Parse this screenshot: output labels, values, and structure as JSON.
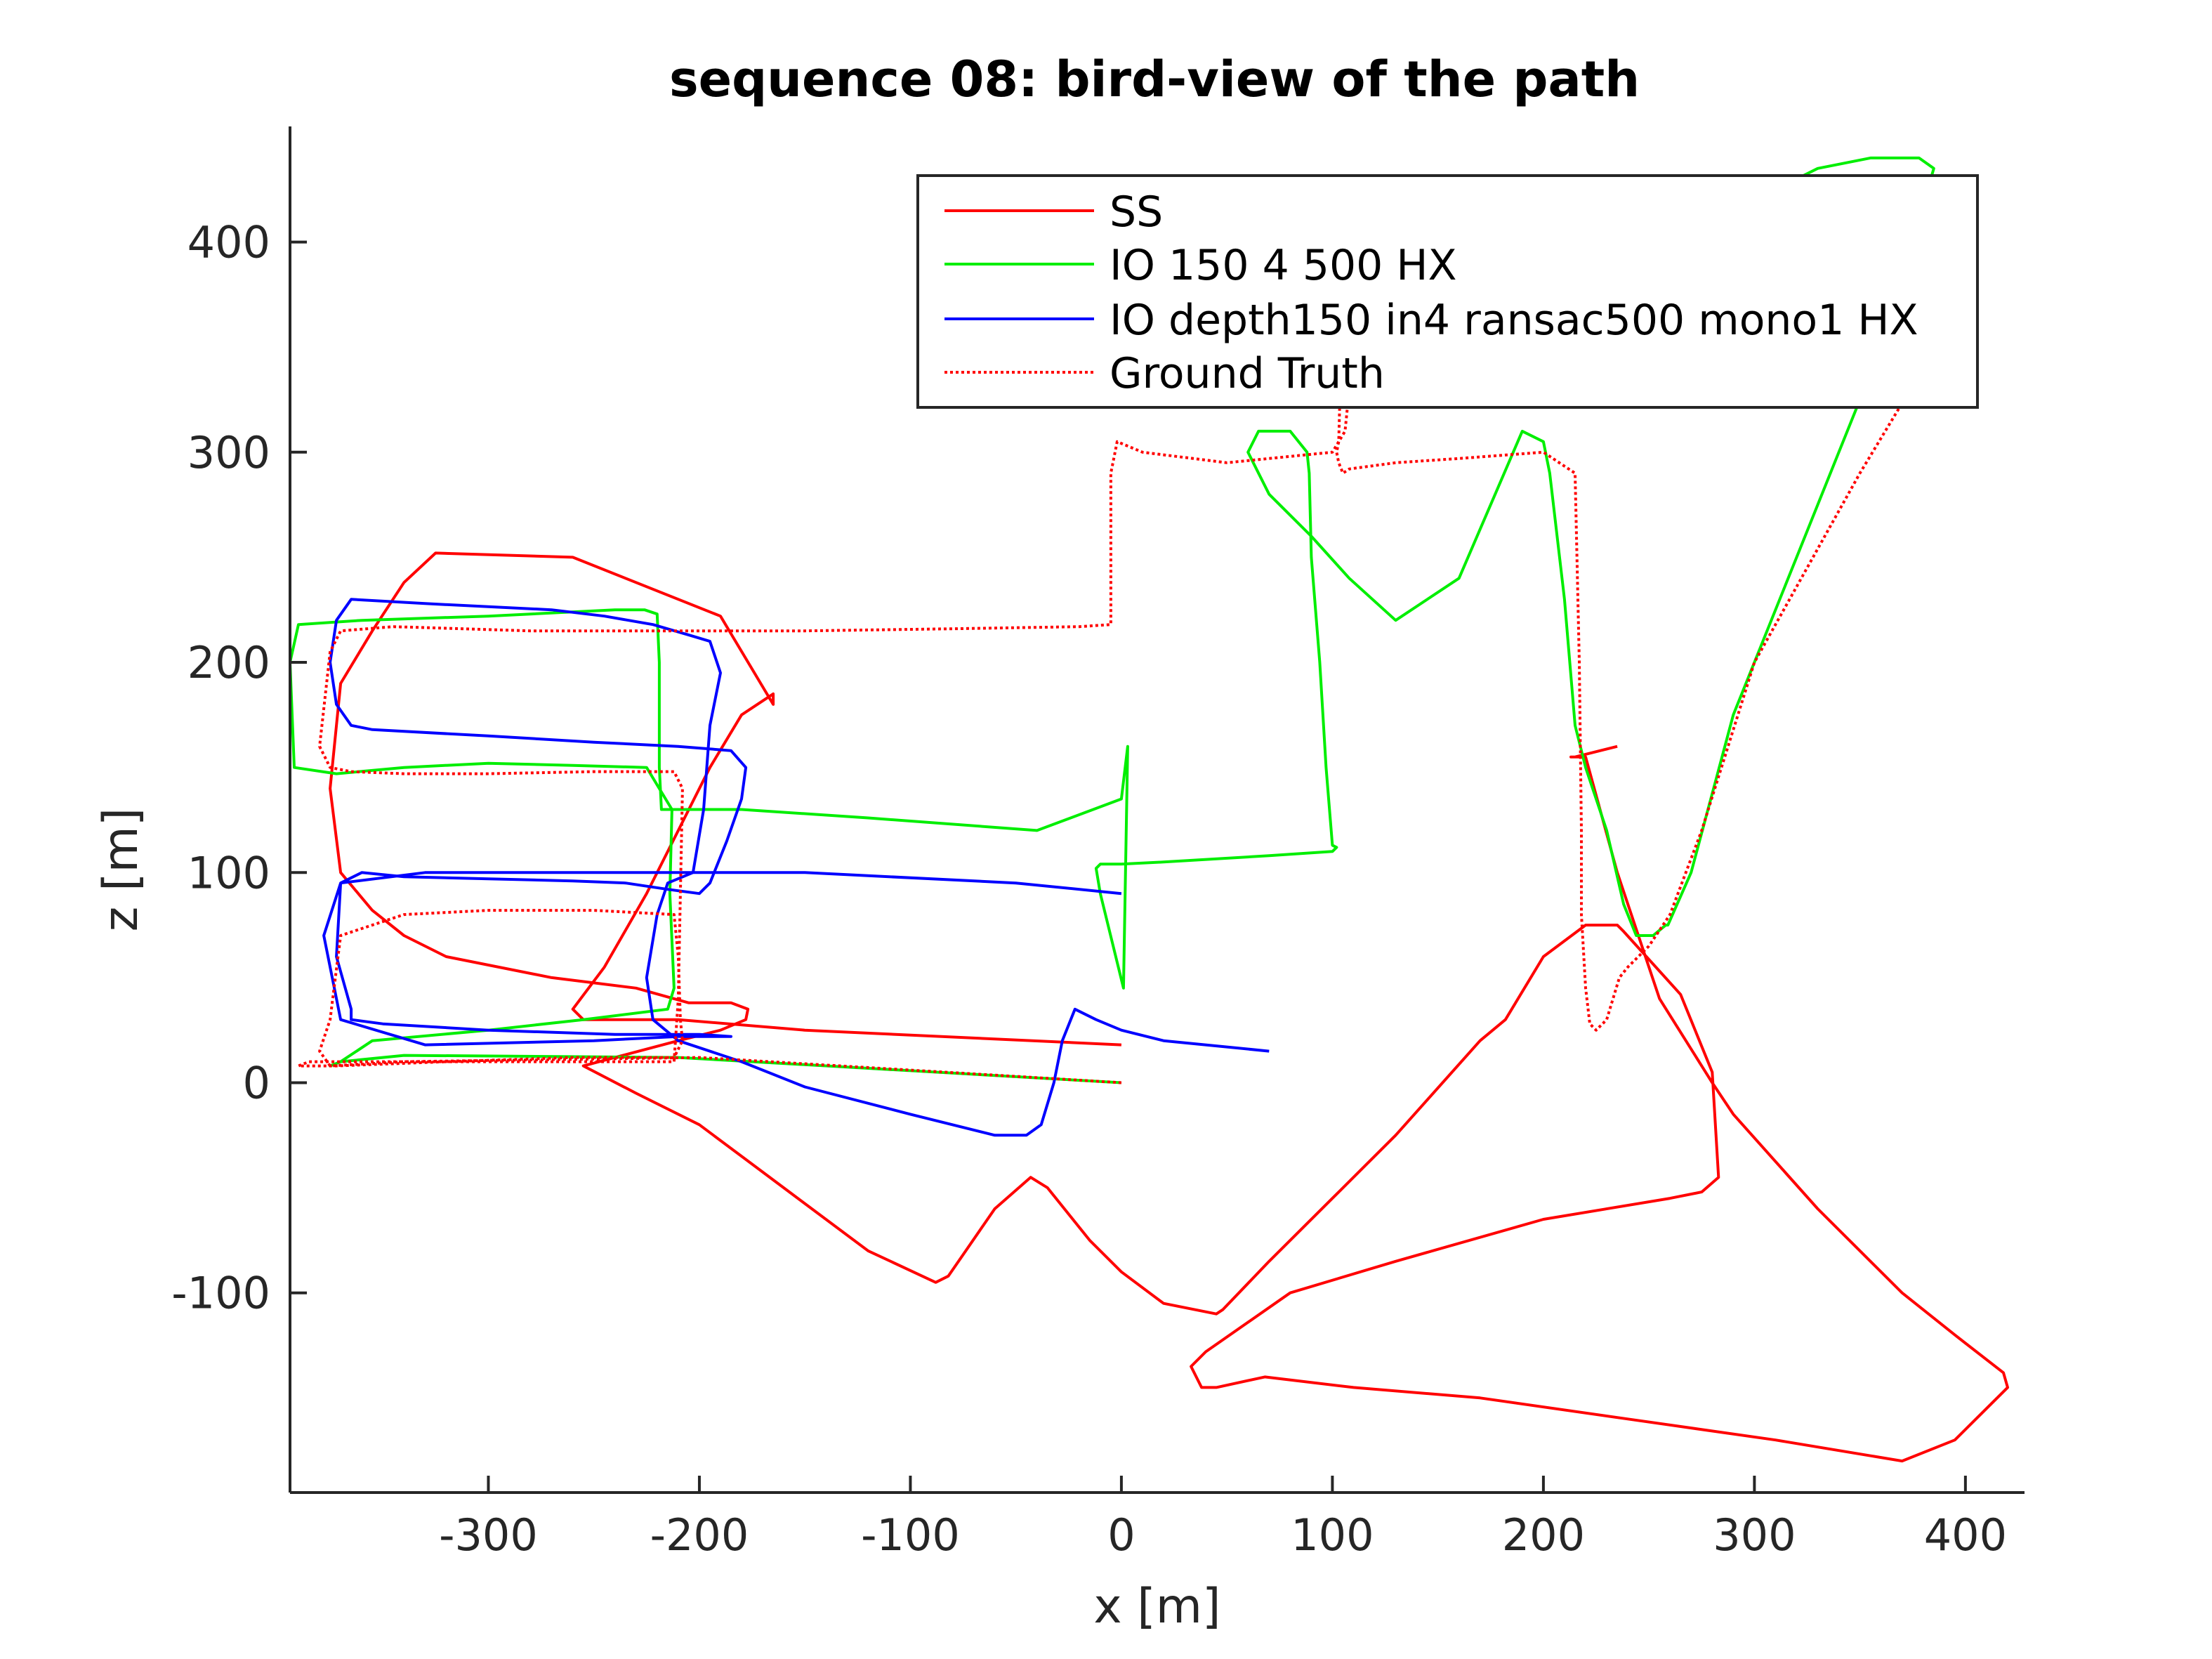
{
  "chart_data": {
    "type": "line",
    "title": "sequence 08: bird-view of the path",
    "xlabel": "x [m]",
    "ylabel": "z [m]",
    "xlim": [
      -394,
      428
    ],
    "ylim": [
      -195,
      455
    ],
    "xticks": [
      -300,
      -200,
      -100,
      0,
      100,
      200,
      300,
      400
    ],
    "yticks": [
      -100,
      0,
      100,
      200,
      300,
      400
    ],
    "xtick_labels": [
      "-300",
      "-200",
      "-100",
      "0",
      "100",
      "200",
      "300",
      "400"
    ],
    "ytick_labels": [
      "-100",
      "0",
      "100",
      "200",
      "300",
      "400"
    ],
    "grid": false,
    "legend_position": "top-right",
    "series": [
      {
        "name": "SS",
        "color": "#ff0000",
        "style": "solid",
        "x": [
          0,
          -150,
          -210,
          -255,
          -260,
          -245,
          -225,
          -210,
          -195,
          -180,
          -165,
          -165,
          -190,
          -260,
          -325,
          -340,
          -355,
          -370,
          -375,
          -370,
          -355,
          -340,
          -320,
          -270,
          -230,
          -205,
          -185,
          -177,
          -178,
          -190,
          -210,
          -240,
          -255,
          -255,
          -230,
          -200,
          -160,
          -120,
          -88,
          -82,
          -60,
          -43,
          -35,
          -15,
          0,
          20,
          45,
          48,
          70,
          100,
          130,
          170,
          182,
          185,
          200,
          220,
          235,
          238,
          265,
          280,
          283,
          275,
          260,
          200,
          130,
          80,
          40,
          33,
          38,
          45,
          68,
          110,
          170,
          240,
          310,
          370,
          395,
          420,
          418,
          395,
          370,
          330,
          290,
          280,
          255,
          235,
          220,
          213,
          215,
          235
        ],
        "y": [
          18,
          25,
          30,
          30,
          35,
          55,
          90,
          120,
          150,
          175,
          185,
          180,
          222,
          250,
          252,
          238,
          215,
          190,
          140,
          100,
          82,
          70,
          60,
          50,
          45,
          38,
          38,
          35,
          30,
          25,
          20,
          12,
          8,
          8,
          -5,
          -20,
          -50,
          -80,
          -95,
          -92,
          -60,
          -45,
          -50,
          -75,
          -90,
          -105,
          -110,
          -108,
          -85,
          -55,
          -25,
          20,
          30,
          35,
          60,
          75,
          75,
          72,
          42,
          5,
          -45,
          -52,
          -55,
          -65,
          -85,
          -100,
          -128,
          -135,
          -145,
          -145,
          -140,
          -145,
          -150,
          -160,
          -170,
          -180,
          -170,
          -145,
          -138,
          -120,
          -100,
          -60,
          -15,
          0,
          40,
          100,
          155,
          155,
          155,
          160
        ]
      },
      {
        "name": "IO 150 4 500 HX",
        "color": "#00ee00",
        "style": "solid",
        "x": [
          0,
          -210,
          -340,
          -370,
          -375,
          -370,
          -355,
          -300,
          -255,
          -215,
          -212,
          -214,
          -213,
          -225,
          -260,
          -300,
          -340,
          -372,
          -392,
          -394,
          -390,
          -360,
          -300,
          -240,
          -226,
          -220,
          -219,
          -219,
          -218,
          -210,
          -180,
          -120,
          -40,
          0,
          3,
          1,
          -10,
          -12,
          -10,
          0,
          20,
          70,
          100,
          102,
          100,
          97,
          94,
          90,
          89,
          88,
          80,
          65,
          60,
          70,
          90,
          108,
          130,
          160,
          190,
          200,
          203,
          210,
          215,
          220,
          230,
          238,
          244,
          252,
          258,
          259,
          270,
          290,
          320,
          340,
          360,
          372,
          383,
          385,
          378,
          355,
          330,
          320
        ],
        "y": [
          0,
          12,
          13,
          10,
          8,
          10,
          20,
          25,
          30,
          35,
          45,
          90,
          130,
          150,
          151,
          152,
          150,
          147,
          150,
          200,
          218,
          220,
          222,
          225,
          225,
          223,
          200,
          150,
          130,
          130,
          130,
          126,
          120,
          135,
          160,
          45,
          90,
          102,
          104,
          104,
          105,
          108,
          110,
          112,
          113,
          150,
          200,
          250,
          290,
          300,
          310,
          310,
          300,
          280,
          260,
          240,
          220,
          240,
          310,
          305,
          290,
          230,
          170,
          150,
          120,
          85,
          70,
          70,
          75,
          75,
          100,
          175,
          250,
          300,
          350,
          385,
          428,
          435,
          440,
          440,
          435,
          430
        ]
      },
      {
        "name": "IO depth150 in4 ransac500 mono1 HX",
        "color": "#0000ff",
        "style": "solid",
        "x": [
          70,
          20,
          0,
          -12,
          -22,
          -28,
          -32,
          -38,
          -45,
          -60,
          -100,
          -150,
          -180,
          -210,
          -222,
          -225,
          -220,
          -215,
          -203,
          -198,
          -195,
          -190,
          -195,
          -205,
          -222,
          -245,
          -270,
          -330,
          -365,
          -372,
          -375,
          -372,
          -365,
          -355,
          -300,
          -250,
          -210,
          -185,
          -178,
          -180,
          -187,
          -195,
          -200,
          -215,
          -235,
          -260,
          -300,
          -340,
          -360,
          -370,
          -372,
          -365,
          -365,
          -350,
          -300,
          -240,
          -200,
          -185,
          -190,
          -195,
          -210,
          -250,
          -330,
          -370,
          -378,
          -370,
          -330,
          -250,
          -150,
          -50,
          0
        ],
        "y": [
          15,
          20,
          25,
          30,
          35,
          20,
          0,
          -20,
          -25,
          -25,
          -15,
          -2,
          10,
          20,
          30,
          50,
          80,
          95,
          100,
          130,
          170,
          195,
          210,
          213,
          218,
          222,
          225,
          228,
          230,
          220,
          200,
          180,
          170,
          168,
          165,
          162,
          160,
          158,
          150,
          135,
          115,
          95,
          90,
          92,
          95,
          96,
          97,
          98,
          100,
          95,
          60,
          35,
          30,
          28,
          25,
          23,
          23,
          22,
          22,
          22,
          22,
          20,
          18,
          30,
          70,
          95,
          100,
          100,
          100,
          95,
          90
        ]
      },
      {
        "name": "Ground Truth",
        "color": "#ff0000",
        "style": "dotted",
        "x": [
          0,
          -200,
          -340,
          -375,
          -380,
          -375,
          -370,
          -340,
          -300,
          -250,
          -212,
          -210,
          -209,
          -208,
          -212,
          -260,
          -320,
          -372,
          -390,
          -390,
          -385,
          -360,
          -300,
          -240,
          -212,
          -210,
          -209,
          -208,
          -212,
          -250,
          -300,
          -340,
          -365,
          -375,
          -380,
          -375,
          -370,
          -345,
          -280,
          -210,
          -150,
          -80,
          -20,
          -5,
          -5,
          -2,
          10,
          50,
          100,
          106,
          108,
          105,
          103,
          102,
          103,
          105,
          108,
          130,
          160,
          200,
          215,
          217,
          218,
          218,
          220,
          222,
          225,
          230,
          236,
          240,
          250,
          260,
          275,
          300,
          350,
          380,
          395,
          400,
          398,
          385
        ],
        "y": [
          0,
          12,
          10,
          8,
          15,
          30,
          70,
          80,
          82,
          82,
          80,
          60,
          30,
          20,
          12,
          12,
          10,
          8,
          8,
          8,
          10,
          10,
          10,
          10,
          10,
          40,
          90,
          140,
          148,
          148,
          147,
          147,
          148,
          150,
          160,
          205,
          215,
          217,
          215,
          215,
          215,
          216,
          217,
          218,
          290,
          305,
          300,
          295,
          300,
          310,
          330,
          380,
          305,
          300,
          295,
          290,
          292,
          295,
          297,
          300,
          290,
          200,
          120,
          80,
          45,
          28,
          25,
          30,
          50,
          55,
          65,
          80,
          120,
          200,
          290,
          340,
          370,
          380,
          385,
          390
        ]
      }
    ]
  }
}
